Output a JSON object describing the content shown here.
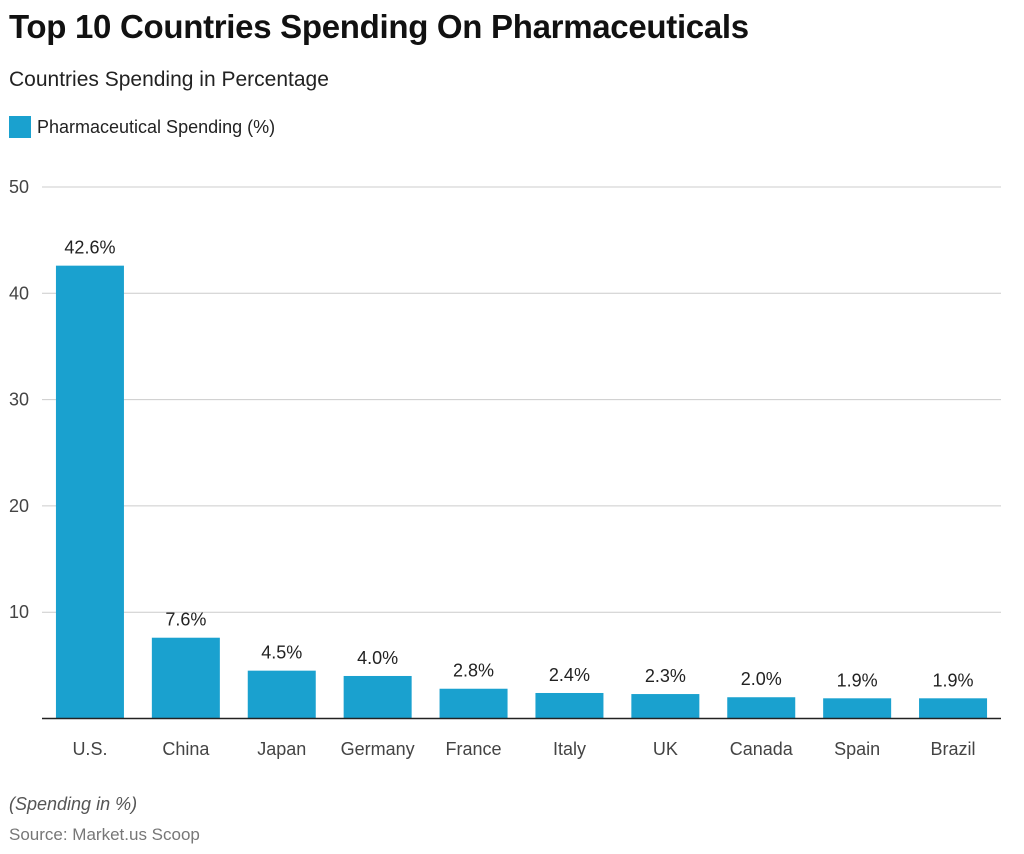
{
  "title": "Top 10 Countries Spending On Pharmaceuticals",
  "subtitle": "Countries Spending in Percentage",
  "note": "(Spending in %)",
  "source": "Source: Market.us Scoop",
  "colors": {
    "bar": "#1aa1cf",
    "grid": "#cccccc",
    "axis": "#222222"
  },
  "chart_data": {
    "type": "bar",
    "title": "Top 10 Countries Spending On Pharmaceuticals",
    "subtitle": "Countries Spending in Percentage",
    "categories": [
      "U.S.",
      "China",
      "Japan",
      "Germany",
      "France",
      "Italy",
      "UK",
      "Canada",
      "Spain",
      "Brazil"
    ],
    "series": [
      {
        "name": "Pharmaceutical Spending (%)",
        "values": [
          42.6,
          7.6,
          4.5,
          4.0,
          2.8,
          2.4,
          2.3,
          2.0,
          1.9,
          1.9
        ]
      }
    ],
    "data_labels": [
      "42.6%",
      "7.6%",
      "4.5%",
      "4.0%",
      "2.8%",
      "2.4%",
      "2.3%",
      "2.0%",
      "1.9%",
      "1.9%"
    ],
    "yticks": [
      10,
      20,
      30,
      40,
      50
    ],
    "ylim": [
      0,
      50
    ],
    "grid": true,
    "legend": "top-left",
    "xlabel": "",
    "ylabel": ""
  }
}
